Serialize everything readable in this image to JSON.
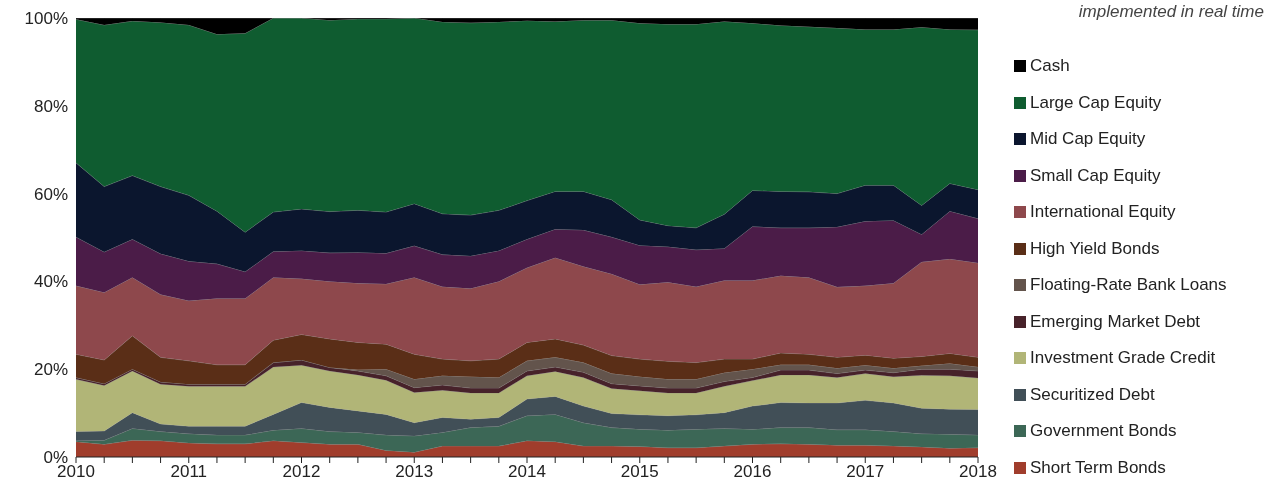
{
  "chart_data": {
    "type": "area",
    "stacked": true,
    "annotations": [
      "implemented in real time"
    ],
    "x": [
      2010,
      2010.25,
      2010.5,
      2010.75,
      2011,
      2011.25,
      2011.5,
      2011.75,
      2012,
      2012.25,
      2012.5,
      2012.75,
      2013,
      2013.25,
      2013.5,
      2013.75,
      2014,
      2014.25,
      2014.5,
      2014.75,
      2015,
      2015.25,
      2015.5,
      2015.75,
      2016,
      2016.25,
      2016.5,
      2016.75,
      2017,
      2017.25,
      2017.5,
      2017.75,
      2018
    ],
    "xlim": [
      2010,
      2018
    ],
    "xticks": [
      2010,
      {
        "value": 2010.25,
        "label": null
      },
      {
        "value": 2010.5,
        "label": null
      },
      {
        "value": 2010.75,
        "label": null
      },
      2011,
      {
        "value": 2011.25,
        "label": null
      },
      {
        "value": 2011.5,
        "label": null
      },
      {
        "value": 2011.75,
        "label": null
      },
      2012,
      {
        "value": 2012.25,
        "label": null
      },
      {
        "value": 2012.5,
        "label": null
      },
      {
        "value": 2012.75,
        "label": null
      },
      2013,
      {
        "value": 2013.25,
        "label": null
      },
      {
        "value": 2013.5,
        "label": null
      },
      {
        "value": 2013.75,
        "label": null
      },
      2014,
      {
        "value": 2014.25,
        "label": null
      },
      {
        "value": 2014.5,
        "label": null
      },
      {
        "value": 2014.75,
        "label": null
      },
      2015,
      {
        "value": 2015.25,
        "label": null
      },
      {
        "value": 2015.5,
        "label": null
      },
      {
        "value": 2015.75,
        "label": null
      },
      2016,
      {
        "value": 2016.25,
        "label": null
      },
      {
        "value": 2016.5,
        "label": null
      },
      {
        "value": 2016.75,
        "label": null
      },
      2017,
      {
        "value": 2017.25,
        "label": null
      },
      {
        "value": 2017.5,
        "label": null
      },
      {
        "value": 2017.75,
        "label": null
      },
      2018
    ],
    "ylim": [
      0,
      100
    ],
    "yticks": [
      {
        "value": 0,
        "label": "0%"
      },
      {
        "value": 20,
        "label": "20%"
      },
      {
        "value": 40,
        "label": "40%"
      },
      {
        "value": 60,
        "label": "60%"
      },
      {
        "value": 80,
        "label": "80%"
      },
      {
        "value": 100,
        "label": "100%"
      }
    ],
    "legend": "right",
    "series": [
      {
        "name": "Short Term Bonds",
        "color": "#a03d2c",
        "values": [
          3.5,
          2.9,
          3.8,
          3.7,
          3.2,
          3.0,
          3.0,
          3.7,
          3.3,
          2.9,
          2.9,
          1.5,
          1.1,
          2.5,
          2.5,
          2.5,
          3.7,
          3.5,
          2.5,
          2.5,
          2.4,
          2.1,
          2.1,
          2.5,
          2.9,
          3.0,
          2.9,
          2.7,
          2.7,
          2.5,
          2.3,
          2.0,
          2.1
        ]
      },
      {
        "name": "Government Bonds",
        "color": "#3c6756",
        "values": [
          0.2,
          0.9,
          2.7,
          2.1,
          2.1,
          2.0,
          2.0,
          2.4,
          3.2,
          2.9,
          2.7,
          3.5,
          3.7,
          3.1,
          4.2,
          4.5,
          5.7,
          6.2,
          5.3,
          4.2,
          3.9,
          4.0,
          4.2,
          4.0,
          3.4,
          3.7,
          3.8,
          3.5,
          3.5,
          3.3,
          3.0,
          3.2,
          2.9
        ]
      },
      {
        "name": "Securitized Debt",
        "color": "#414f57",
        "values": [
          2.1,
          2.1,
          3.6,
          1.7,
          1.7,
          2.0,
          2.0,
          3.6,
          5.9,
          5.5,
          4.9,
          4.7,
          3.0,
          3.4,
          1.9,
          2.0,
          3.8,
          4.1,
          3.8,
          3.2,
          3.3,
          3.3,
          3.3,
          3.6,
          5.3,
          5.7,
          5.6,
          6.1,
          6.7,
          6.5,
          5.8,
          5.7,
          5.8
        ]
      },
      {
        "name": "Investment Grade Credit",
        "color": "#b1b577",
        "values": [
          11.9,
          10.4,
          9.5,
          9.1,
          9.1,
          9.1,
          9.1,
          10.8,
          8.5,
          8.3,
          8.2,
          7.8,
          6.9,
          6.2,
          6.0,
          5.6,
          5.3,
          5.7,
          6.5,
          5.7,
          5.5,
          5.2,
          5.0,
          6.0,
          5.8,
          6.3,
          6.4,
          5.8,
          6.1,
          6.0,
          7.5,
          7.6,
          7.2
        ]
      },
      {
        "name": "Emerging Market Debt",
        "color": "#47222a",
        "values": [
          0.4,
          0.4,
          0.4,
          0.5,
          0.5,
          0.5,
          0.5,
          1.0,
          1.2,
          0.8,
          0.9,
          1.0,
          1.1,
          1.2,
          1.1,
          1.1,
          1.1,
          1.0,
          1.2,
          1.1,
          1.1,
          1.1,
          1.1,
          1.1,
          0.7,
          1.1,
          1.1,
          0.9,
          0.8,
          0.9,
          1.4,
          1.5,
          1.6
        ]
      },
      {
        "name": "Floating-Rate Bank Loans",
        "color": "#63544c",
        "values": [
          0,
          0,
          0,
          0,
          0,
          0,
          0,
          0,
          0,
          0,
          0.3,
          1.5,
          1.9,
          2.1,
          2.6,
          2.4,
          2.3,
          2.2,
          2.2,
          2.3,
          2.1,
          2.0,
          2.0,
          2.0,
          1.9,
          1.2,
          1.2,
          1.2,
          1.1,
          1.0,
          0.8,
          1.3,
          0.9
        ]
      },
      {
        "name": "High Yield Bonds",
        "color": "#5a2e17",
        "values": [
          5.3,
          5.4,
          7.6,
          5.6,
          5.3,
          4.4,
          4.4,
          5.1,
          5.8,
          6.5,
          6.2,
          5.7,
          5.7,
          3.8,
          3.6,
          4.2,
          4.2,
          4.2,
          4.0,
          4.1,
          4.0,
          4.1,
          3.8,
          3.1,
          2.3,
          2.7,
          2.4,
          2.5,
          2.3,
          2.3,
          2.1,
          2.3,
          2.2
        ]
      },
      {
        "name": "International Equity",
        "color": "#8e484c",
        "values": [
          15.6,
          15.4,
          13.3,
          14.3,
          13.7,
          15.1,
          15.1,
          14.3,
          12.7,
          13.1,
          13.5,
          13.7,
          17.5,
          16.5,
          16.5,
          17.7,
          17.0,
          18.5,
          17.9,
          18.6,
          17.0,
          18.0,
          17.3,
          17.9,
          17.9,
          17.6,
          17.5,
          16.0,
          15.8,
          17.1,
          21.5,
          21.5,
          21.5
        ]
      },
      {
        "name": "Small Cap Equity",
        "color": "#4b1c48",
        "values": [
          11.1,
          9.2,
          8.7,
          9.3,
          9.0,
          7.9,
          6.1,
          5.9,
          6.4,
          6.5,
          7.0,
          7.0,
          7.2,
          7.3,
          7.4,
          7.0,
          6.5,
          6.5,
          8.3,
          8.4,
          8.9,
          8.1,
          8.4,
          7.3,
          12.3,
          10.9,
          11.3,
          13.7,
          14.7,
          14.3,
          6.3,
          10.9,
          10.1
        ]
      },
      {
        "name": "Mid Cap Equity",
        "color": "#0b162e",
        "values": [
          16.9,
          14.9,
          14.5,
          15.3,
          15.0,
          12.0,
          9.0,
          9.0,
          9.5,
          9.4,
          9.6,
          9.4,
          9.6,
          9.3,
          9.3,
          9.2,
          8.8,
          8.6,
          8.8,
          8.5,
          5.8,
          4.8,
          5.0,
          7.8,
          8.2,
          8.3,
          8.2,
          7.6,
          8.2,
          8.0,
          6.6,
          6.3,
          6.6
        ]
      },
      {
        "name": "Large Cap Equity",
        "color": "#0f5c30",
        "values": [
          32.7,
          36.8,
          35.2,
          37.4,
          38.8,
          40.3,
          45.3,
          44.2,
          43.5,
          43.6,
          43.6,
          44.0,
          42.3,
          43.7,
          43.8,
          42.9,
          41.0,
          38.7,
          39.0,
          40.9,
          44.8,
          45.9,
          46.4,
          43.9,
          38.1,
          37.8,
          37.6,
          37.7,
          35.5,
          35.5,
          40.6,
          35.1,
          36.4
        ]
      },
      {
        "name": "Cash",
        "color": "#000000",
        "values": [
          0.3,
          1.6,
          0.7,
          1.0,
          1.6,
          3.7,
          3.5,
          0,
          0,
          0.5,
          0.2,
          0.2,
          0,
          0.9,
          1.1,
          0.9,
          0.6,
          0.8,
          0.5,
          0.5,
          1.2,
          1.4,
          1.4,
          0.8,
          1.2,
          1.7,
          2.0,
          2.3,
          2.6,
          2.6,
          2.1,
          2.6,
          2.7
        ]
      }
    ]
  }
}
